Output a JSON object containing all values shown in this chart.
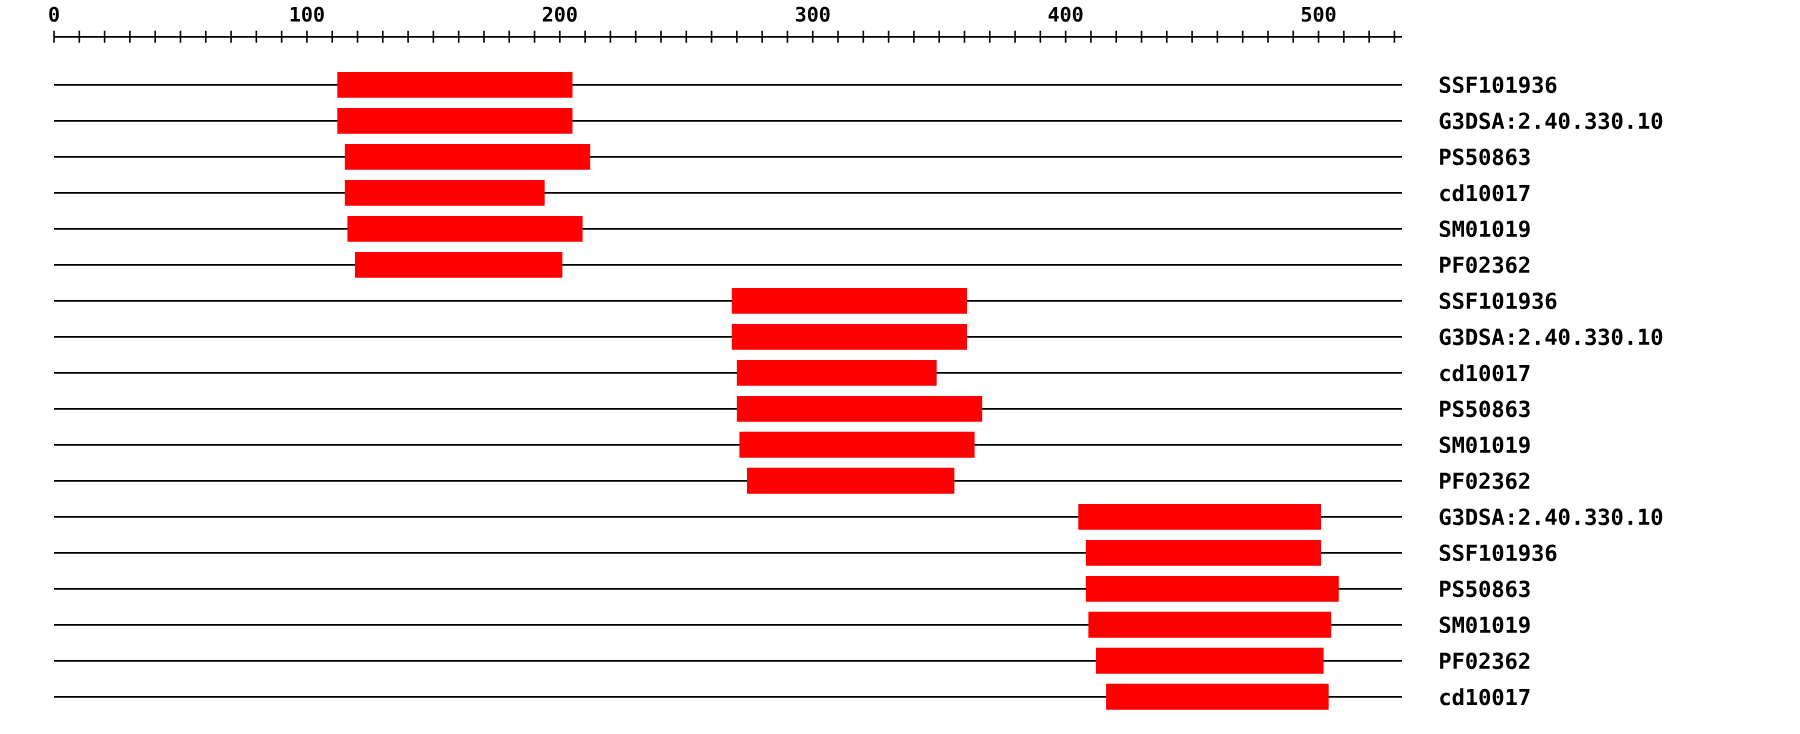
{
  "chart_data": {
    "type": "bar",
    "orientation": "horizontal",
    "categories": [
      "SSF101936",
      "G3DSA:2.40.330.10",
      "PS50863",
      "cd10017",
      "SM01019",
      "PF02362",
      "SSF101936",
      "G3DSA:2.40.330.10",
      "cd10017",
      "PS50863",
      "SM01019",
      "PF02362",
      "G3DSA:2.40.330.10",
      "SSF101936",
      "PS50863",
      "SM01019",
      "PF02362",
      "cd10017"
    ],
    "base": [
      112,
      112,
      115,
      115,
      116,
      119,
      268,
      268,
      270,
      270,
      271,
      274,
      405,
      408,
      408,
      409,
      412,
      416
    ],
    "values": [
      93,
      93,
      97,
      79,
      93,
      82,
      93,
      93,
      79,
      97,
      93,
      82,
      96,
      93,
      100,
      96,
      90,
      88
    ],
    "color": "#ff0000",
    "xlim": [
      0,
      533
    ],
    "xticks": [
      0,
      {
        "value": 10,
        "label": null
      },
      {
        "value": 20,
        "label": null
      },
      {
        "value": 30,
        "label": null
      },
      {
        "value": 40,
        "label": null
      },
      {
        "value": 50,
        "label": null
      },
      {
        "value": 60,
        "label": null
      },
      {
        "value": 70,
        "label": null
      },
      {
        "value": 80,
        "label": null
      },
      {
        "value": 90,
        "label": null
      },
      100,
      {
        "value": 110,
        "label": null
      },
      {
        "value": 120,
        "label": null
      },
      {
        "value": 130,
        "label": null
      },
      {
        "value": 140,
        "label": null
      },
      {
        "value": 150,
        "label": null
      },
      {
        "value": 160,
        "label": null
      },
      {
        "value": 170,
        "label": null
      },
      {
        "value": 180,
        "label": null
      },
      {
        "value": 190,
        "label": null
      },
      200,
      {
        "value": 210,
        "label": null
      },
      {
        "value": 220,
        "label": null
      },
      {
        "value": 230,
        "label": null
      },
      {
        "value": 240,
        "label": null
      },
      {
        "value": 250,
        "label": null
      },
      {
        "value": 260,
        "label": null
      },
      {
        "value": 270,
        "label": null
      },
      {
        "value": 280,
        "label": null
      },
      {
        "value": 290,
        "label": null
      },
      300,
      {
        "value": 310,
        "label": null
      },
      {
        "value": 320,
        "label": null
      },
      {
        "value": 330,
        "label": null
      },
      {
        "value": 340,
        "label": null
      },
      {
        "value": 350,
        "label": null
      },
      {
        "value": 360,
        "label": null
      },
      {
        "value": 370,
        "label": null
      },
      {
        "value": 380,
        "label": null
      },
      {
        "value": 390,
        "label": null
      },
      400,
      {
        "value": 410,
        "label": null
      },
      {
        "value": 420,
        "label": null
      },
      {
        "value": 430,
        "label": null
      },
      {
        "value": 440,
        "label": null
      },
      {
        "value": 450,
        "label": null
      },
      {
        "value": 460,
        "label": null
      },
      {
        "value": 470,
        "label": null
      },
      {
        "value": 480,
        "label": null
      },
      {
        "value": 490,
        "label": null
      },
      500,
      {
        "value": 510,
        "label": null
      },
      {
        "value": 520,
        "label": null
      },
      {
        "value": 530,
        "label": null
      }
    ],
    "grid": "y"
  }
}
